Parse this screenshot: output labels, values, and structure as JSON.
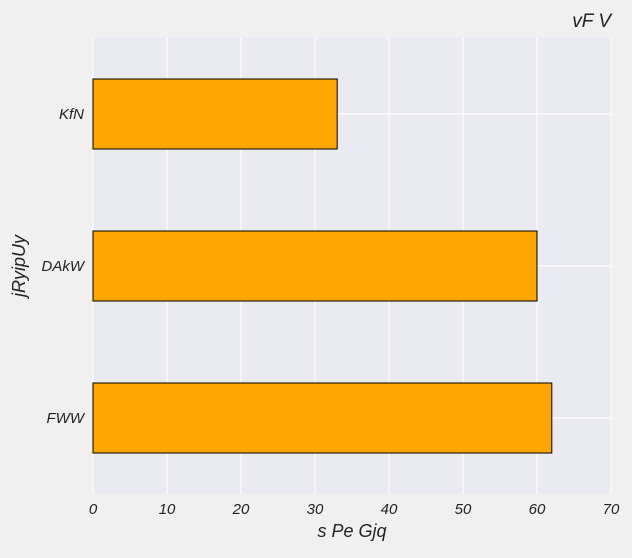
{
  "chart_data": {
    "type": "bar",
    "orientation": "horizontal",
    "title": "vF V",
    "xlabel": "s Pe Gjq",
    "ylabel": "jRyipUy",
    "categories": [
      "KfN",
      "DAkW",
      "FWW"
    ],
    "values": [
      33,
      60,
      62
    ],
    "xlim": [
      0,
      70
    ],
    "xticks": [
      0,
      10,
      20,
      30,
      40,
      50,
      60,
      70
    ],
    "grid": true,
    "legend": "none"
  },
  "colors": {
    "bar_fill": "#FFA500",
    "bar_stroke": "#000000",
    "plot_background": "#EAEAF2",
    "figure_background": "#F0F0F0",
    "grid": "#FFFFFF",
    "text": "#222222"
  }
}
